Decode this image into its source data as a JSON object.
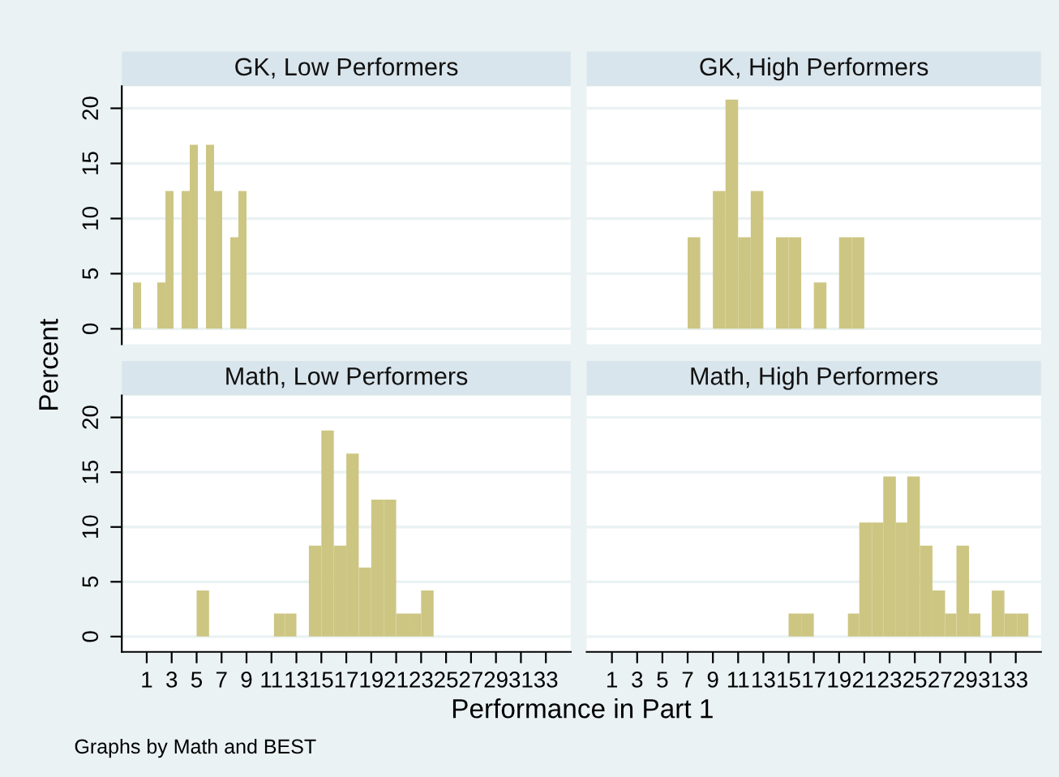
{
  "chart_data": [
    {
      "type": "histogram",
      "title": "GK, Low Performers",
      "ylabel": "Percent",
      "bins": [
        -0.1,
        0.55,
        1.2,
        1.85,
        2.5,
        3.15,
        3.8,
        4.45,
        5.1,
        5.75,
        6.4,
        7.05,
        7.7,
        8.35,
        9.0
      ],
      "values": [
        4.2,
        0,
        0,
        4.2,
        12.5,
        0,
        12.5,
        16.7,
        0,
        16.7,
        12.5,
        0,
        8.3,
        12.5
      ],
      "color": "#cdc683",
      "xlim": [
        -1,
        35
      ],
      "ylim": [
        -1.4,
        22
      ],
      "xticks": [
        1,
        3,
        5,
        7,
        9,
        11,
        13,
        15,
        17,
        19,
        21,
        23,
        25,
        27,
        29,
        31,
        33
      ],
      "yticks": [
        0,
        5,
        10,
        15,
        20
      ],
      "grid": "y",
      "tick_labels": "y"
    },
    {
      "type": "histogram",
      "title": "GK, High Performers",
      "bins": [
        7,
        8,
        9,
        10,
        11,
        12,
        13,
        14,
        15,
        16,
        17,
        18,
        19,
        20,
        21
      ],
      "values": [
        8.3,
        0,
        12.5,
        20.8,
        8.3,
        12.5,
        0,
        8.3,
        8.3,
        0,
        4.2,
        0,
        8.3,
        8.3
      ],
      "color": "#cdc683",
      "xlim": [
        -1,
        35
      ],
      "ylim": [
        -1.4,
        22
      ],
      "xticks": [
        1,
        3,
        5,
        7,
        9,
        11,
        13,
        15,
        17,
        19,
        21,
        23,
        25,
        27,
        29,
        31,
        33
      ],
      "yticks": [
        0,
        5,
        10,
        15,
        20
      ],
      "grid": "y",
      "tick_labels": false
    },
    {
      "type": "histogram",
      "title": "Math, Low Performers",
      "xlabel": "Performance in Part 1",
      "bins": [
        5,
        6,
        11.2,
        12.1,
        13,
        14,
        15,
        16,
        17,
        18,
        19,
        20,
        21,
        22,
        23,
        24
      ],
      "values": [
        4.2,
        0,
        2.1,
        2.1,
        0,
        8.3,
        18.8,
        8.3,
        16.7,
        6.3,
        12.5,
        12.5,
        2.1,
        2.1,
        4.2
      ],
      "color": "#cdc683",
      "xlim": [
        -1,
        35
      ],
      "ylim": [
        -1.4,
        22
      ],
      "xticks": [
        1,
        3,
        5,
        7,
        9,
        11,
        13,
        15,
        17,
        19,
        21,
        23,
        25,
        27,
        29,
        31,
        33
      ],
      "yticks": [
        0,
        5,
        10,
        15,
        20
      ],
      "grid": "y"
    },
    {
      "type": "histogram",
      "title": "Math, High Performers",
      "annotations": [
        "Graphs by Math and BEST"
      ],
      "bins": [
        15,
        16,
        17,
        19.7,
        20.6,
        21.6,
        22.5,
        23.5,
        24.4,
        25.4,
        26.4,
        27.4,
        28.3,
        29.3,
        30.2,
        31.1,
        32.1,
        33.1,
        34.0
      ],
      "values": [
        2.1,
        2.1,
        0,
        2.1,
        10.4,
        10.4,
        14.6,
        10.4,
        14.6,
        8.3,
        4.2,
        2.1,
        8.3,
        2.1,
        0,
        4.2,
        2.1,
        2.1
      ],
      "color": "#cdc683",
      "xlim": [
        -1,
        35
      ],
      "ylim": [
        -1.4,
        22
      ],
      "xticks": [
        1,
        3,
        5,
        7,
        9,
        11,
        13,
        15,
        17,
        19,
        21,
        23,
        25,
        27,
        29,
        31,
        33
      ],
      "yticks": [
        0,
        5,
        10,
        15,
        20
      ],
      "grid": "y",
      "tick_labels": "x"
    }
  ]
}
